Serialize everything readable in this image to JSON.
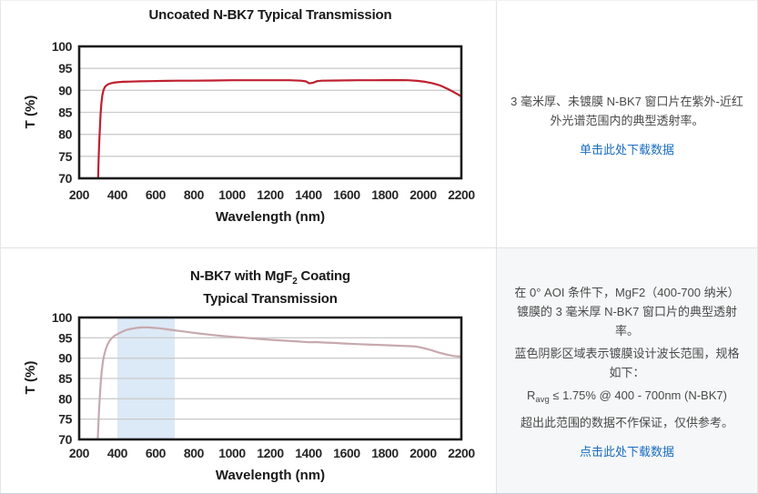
{
  "colors": {
    "uncoated_line": "#bf202f",
    "coated_line": "#c7a9ae",
    "band_blue": "#dce9f6",
    "link_blue": "#1a6dc2",
    "gray_panel_bg": "#f6f7f8",
    "gridline": "#cccccc",
    "plot_frame": "#1c1c1c"
  },
  "chart_data": [
    {
      "type": "line",
      "title": "Uncoated N-BK7 Typical Transmission",
      "xlabel": "Wavelength (nm)",
      "ylabel": "T (%)",
      "xlim": [
        200,
        2200
      ],
      "ylim": [
        70,
        100
      ],
      "xticks": [
        200,
        400,
        600,
        800,
        1000,
        1200,
        1400,
        1600,
        1800,
        2000,
        2200
      ],
      "yticks": [
        70,
        75,
        80,
        85,
        90,
        95,
        100
      ],
      "grid": "horizontal",
      "legend": "none",
      "line_color": "#bf202f",
      "grid_color": "#cccccc",
      "frame_color": "#1c1c1c",
      "series": [
        {
          "points": [
            [
              299,
              70
            ],
            [
              302,
              74.5
            ],
            [
              305,
              78
            ],
            [
              308,
              81
            ],
            [
              312,
              84.5
            ],
            [
              316,
              87
            ],
            [
              321,
              88.8
            ],
            [
              327,
              90
            ],
            [
              334,
              90.7
            ],
            [
              342,
              91.1
            ],
            [
              352,
              91.4
            ],
            [
              365,
              91.6
            ],
            [
              380,
              91.75
            ],
            [
              400,
              91.85
            ],
            [
              430,
              91.95
            ],
            [
              470,
              92
            ],
            [
              520,
              92.05
            ],
            [
              580,
              92.1
            ],
            [
              650,
              92.15
            ],
            [
              720,
              92.2
            ],
            [
              800,
              92.2
            ],
            [
              900,
              92.25
            ],
            [
              1000,
              92.3
            ],
            [
              1100,
              92.3
            ],
            [
              1200,
              92.3
            ],
            [
              1300,
              92.3
            ],
            [
              1360,
              92.2
            ],
            [
              1385,
              92.05
            ],
            [
              1405,
              91.6
            ],
            [
              1425,
              91.75
            ],
            [
              1445,
              92.1
            ],
            [
              1470,
              92.2
            ],
            [
              1550,
              92.25
            ],
            [
              1650,
              92.3
            ],
            [
              1750,
              92.3
            ],
            [
              1850,
              92.35
            ],
            [
              1920,
              92.3
            ],
            [
              1970,
              92.15
            ],
            [
              2010,
              91.95
            ],
            [
              2050,
              91.6
            ],
            [
              2090,
              91.1
            ],
            [
              2130,
              90.3
            ],
            [
              2165,
              89.5
            ],
            [
              2185,
              89
            ],
            [
              2200,
              88.6
            ]
          ]
        }
      ]
    },
    {
      "type": "line",
      "title": "N-BK7 with MgF2 Coating Typical Transmission",
      "title_pre": "N-BK7 with MgF",
      "title_sub": "2",
      "title_post": " Coating",
      "title_line2": "Typical Transmission",
      "xlabel": "Wavelength (nm)",
      "ylabel": "T (%)",
      "xlim": [
        200,
        2200
      ],
      "ylim": [
        70,
        100
      ],
      "xticks": [
        200,
        400,
        600,
        800,
        1000,
        1200,
        1400,
        1600,
        1800,
        2000,
        2200
      ],
      "yticks": [
        70,
        75,
        80,
        85,
        90,
        95,
        100
      ],
      "grid": "horizontal",
      "legend": "none",
      "band": {
        "from": 400,
        "to": 700,
        "color": "#dce9f6"
      },
      "line_color": "#c7a9ae",
      "grid_color": "#cccccc",
      "frame_color": "#1c1c1c",
      "series": [
        {
          "points": [
            [
              297,
              70
            ],
            [
              300,
              73
            ],
            [
              304,
              77
            ],
            [
              308,
              80.5
            ],
            [
              313,
              84
            ],
            [
              318,
              86.8
            ],
            [
              324,
              89
            ],
            [
              331,
              90.8
            ],
            [
              339,
              92.2
            ],
            [
              348,
              93.3
            ],
            [
              358,
              94.2
            ],
            [
              370,
              94.9
            ],
            [
              385,
              95.5
            ],
            [
              400,
              95.9
            ],
            [
              420,
              96.4
            ],
            [
              445,
              96.9
            ],
            [
              470,
              97.2
            ],
            [
              500,
              97.45
            ],
            [
              530,
              97.55
            ],
            [
              560,
              97.55
            ],
            [
              590,
              97.45
            ],
            [
              620,
              97.35
            ],
            [
              660,
              97.1
            ],
            [
              700,
              96.85
            ],
            [
              740,
              96.6
            ],
            [
              780,
              96.35
            ],
            [
              830,
              96.05
            ],
            [
              880,
              95.8
            ],
            [
              940,
              95.5
            ],
            [
              1000,
              95.25
            ],
            [
              1070,
              95
            ],
            [
              1140,
              94.75
            ],
            [
              1210,
              94.5
            ],
            [
              1280,
              94.3
            ],
            [
              1350,
              94.1
            ],
            [
              1400,
              93.9
            ],
            [
              1440,
              93.95
            ],
            [
              1480,
              93.85
            ],
            [
              1530,
              93.75
            ],
            [
              1590,
              93.6
            ],
            [
              1660,
              93.45
            ],
            [
              1730,
              93.3
            ],
            [
              1800,
              93.2
            ],
            [
              1870,
              93.05
            ],
            [
              1930,
              92.95
            ],
            [
              1965,
              92.85
            ],
            [
              2000,
              92.5
            ],
            [
              2040,
              92
            ],
            [
              2080,
              91.4
            ],
            [
              2120,
              90.9
            ],
            [
              2155,
              90.55
            ],
            [
              2185,
              90.4
            ],
            [
              2200,
              90.4
            ]
          ]
        }
      ]
    }
  ],
  "info_top": {
    "text": "3 毫米厚、未镀膜 N-BK7 窗口片在紫外-近红外光谱范围内的典型透射率。",
    "link": "单击此处下载数据"
  },
  "info_bottom": {
    "para1": "在 0° AOI 条件下，MgF2（400-700 纳米）镀膜的 3 毫米厚 N-BK7 窗口片的典型透射率。",
    "para2": "蓝色阴影区域表示镀膜设计波长范围，规格如下：",
    "spec_r": "R",
    "spec_sub": "avg",
    "spec_rest": " ≤ 1.75% @ 400 - 700nm (N-BK7)",
    "para3": "超出此范围的数据不作保证，仅供参考。",
    "link": "点击此处下载数据"
  }
}
